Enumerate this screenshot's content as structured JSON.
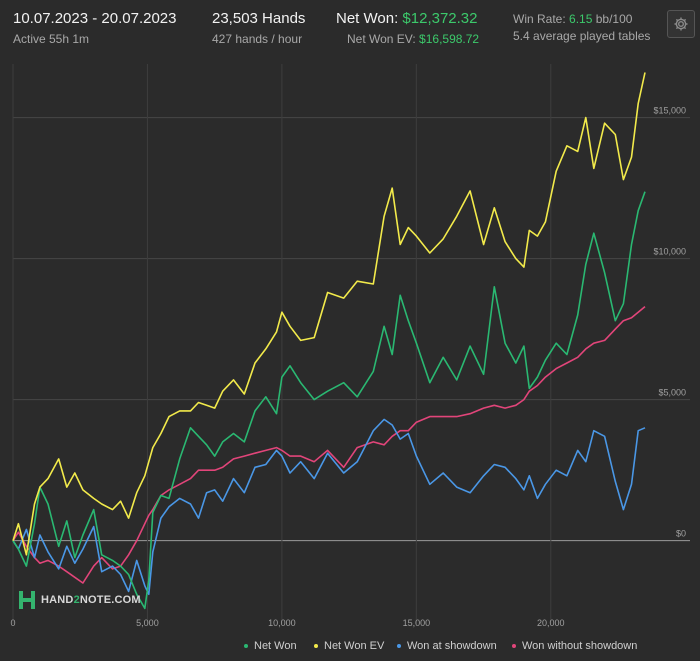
{
  "header": {
    "date_range": "10.07.2023 - 20.07.2023",
    "active": "Active 55h 1m",
    "hands": "23,503 Hands",
    "hands_per_hour": "427 hands / hour",
    "net_won_label": "Net Won:",
    "net_won_value": "$12,372.32",
    "net_won_ev_label": "Net Won  EV:",
    "net_won_ev_value": "$16,598.72",
    "win_rate_label": "Win Rate:",
    "win_rate_value": "6.15",
    "win_rate_unit": "bb/100",
    "avg_tables": "5.4 average played tables"
  },
  "logo": {
    "text_pre": "HAND",
    "text_mid": "2",
    "text_post": "NOTE.COM"
  },
  "colors": {
    "background": "#2b2b2b",
    "net_won": "#2ab872",
    "net_won_ev": "#f2ea4b",
    "won_at_showdown": "#4a97e6",
    "won_without_showdown": "#e2457a",
    "accent_green": "#3cc96b"
  },
  "chart_data": {
    "type": "line",
    "xlabel": "",
    "ylabel": "",
    "xlim": [
      0,
      23503
    ],
    "ylim": [
      -2600,
      16900
    ],
    "x_ticks": [
      0,
      5000,
      10000,
      15000,
      20000
    ],
    "x_tick_labels": [
      "0",
      "5,000",
      "10,000",
      "15,000",
      "20,000"
    ],
    "y_ticks": [
      0,
      5000,
      10000,
      15000
    ],
    "y_tick_labels": [
      "$0",
      "$5,000",
      "$10,000",
      "$15,000"
    ],
    "grid": "horizontal",
    "legend": "bottom-right",
    "series": [
      {
        "name": "Net Won",
        "x": [
          0,
          200,
          500,
          800,
          1000,
          1300,
          1700,
          2000,
          2300,
          2600,
          3000,
          3300,
          3700,
          4000,
          4300,
          4600,
          4900,
          5050,
          5200,
          5500,
          5800,
          6200,
          6600,
          6900,
          7200,
          7500,
          7800,
          8200,
          8600,
          9000,
          9400,
          9800,
          10000,
          10300,
          10700,
          11200,
          11700,
          12300,
          12800,
          13400,
          13800,
          14100,
          14400,
          14700,
          15000,
          15500,
          16000,
          16500,
          17000,
          17500,
          17900,
          18300,
          18700,
          19000,
          19200,
          19500,
          19800,
          20200,
          20600,
          21000,
          21300,
          21600,
          22000,
          22400,
          22700,
          23000,
          23250,
          23503
        ],
        "values": [
          0,
          -300,
          -900,
          600,
          1900,
          1300,
          -200,
          700,
          -600,
          200,
          1100,
          -500,
          -700,
          -900,
          -1200,
          -1900,
          -2400,
          -1400,
          1000,
          1600,
          1500,
          2900,
          4000,
          3700,
          3400,
          3000,
          3500,
          3800,
          3500,
          4600,
          5100,
          4500,
          5800,
          6200,
          5600,
          5000,
          5300,
          5600,
          5100,
          6000,
          7600,
          6600,
          8700,
          7800,
          7000,
          5600,
          6500,
          5700,
          6900,
          5900,
          9000,
          7000,
          6300,
          6900,
          5400,
          5800,
          6400,
          7000,
          6600,
          8000,
          9800,
          10900,
          9500,
          7800,
          8400,
          10500,
          11700,
          12372
        ]
      },
      {
        "name": "Net Won  EV",
        "x": [
          0,
          200,
          500,
          800,
          1000,
          1300,
          1700,
          2000,
          2300,
          2600,
          3000,
          3300,
          3700,
          4000,
          4300,
          4600,
          4900,
          5050,
          5200,
          5500,
          5800,
          6200,
          6600,
          6900,
          7200,
          7500,
          7800,
          8200,
          8600,
          9000,
          9400,
          9800,
          10000,
          10300,
          10700,
          11200,
          11700,
          12300,
          12800,
          13400,
          13800,
          14100,
          14400,
          14700,
          15000,
          15500,
          16000,
          16500,
          17000,
          17500,
          17900,
          18300,
          18700,
          19000,
          19200,
          19500,
          19800,
          20200,
          20600,
          21000,
          21300,
          21600,
          22000,
          22400,
          22700,
          23000,
          23250,
          23503
        ],
        "values": [
          0,
          600,
          -500,
          1300,
          1900,
          2200,
          2900,
          1900,
          2400,
          1800,
          1500,
          1300,
          1100,
          1400,
          800,
          1700,
          2300,
          2800,
          3300,
          3800,
          4400,
          4600,
          4600,
          4900,
          4800,
          4700,
          5300,
          5700,
          5200,
          6300,
          6800,
          7400,
          8100,
          7600,
          7100,
          7200,
          8800,
          8600,
          9200,
          9100,
          11500,
          12500,
          10500,
          11100,
          10800,
          10200,
          10700,
          11500,
          12400,
          10500,
          11800,
          10600,
          10000,
          9700,
          11000,
          10800,
          11300,
          13100,
          14000,
          13800,
          15000,
          13200,
          14800,
          14400,
          12800,
          13600,
          15500,
          16600
        ]
      },
      {
        "name": "Won at showdown",
        "x": [
          0,
          200,
          500,
          800,
          1000,
          1300,
          1700,
          2000,
          2300,
          2600,
          3000,
          3300,
          3700,
          4000,
          4300,
          4600,
          4900,
          5050,
          5200,
          5500,
          5800,
          6200,
          6600,
          6900,
          7200,
          7500,
          7800,
          8200,
          8600,
          9000,
          9400,
          9800,
          10000,
          10300,
          10700,
          11200,
          11700,
          12300,
          12800,
          13400,
          13800,
          14100,
          14400,
          14700,
          15000,
          15500,
          16000,
          16500,
          17000,
          17500,
          17900,
          18300,
          18700,
          19000,
          19200,
          19500,
          19800,
          20200,
          20600,
          21000,
          21300,
          21600,
          22000,
          22400,
          22700,
          23000,
          23250,
          23503
        ],
        "values": [
          0,
          -300,
          400,
          -600,
          200,
          -400,
          -1000,
          -200,
          -800,
          -300,
          500,
          -1100,
          -900,
          -1200,
          -1800,
          -700,
          -1600,
          -1900,
          -400,
          800,
          1200,
          1500,
          1300,
          800,
          1700,
          1800,
          1400,
          2200,
          1700,
          2600,
          2700,
          3200,
          3000,
          2400,
          2800,
          2200,
          3100,
          2400,
          2800,
          3900,
          4300,
          4100,
          3600,
          3800,
          3000,
          2000,
          2400,
          1900,
          1700,
          2300,
          2700,
          2600,
          2200,
          1800,
          2300,
          1500,
          2000,
          2500,
          2300,
          3200,
          2800,
          3900,
          3700,
          2100,
          1100,
          2000,
          3900,
          4000
        ]
      },
      {
        "name": "Won without showdown",
        "x": [
          0,
          200,
          500,
          800,
          1000,
          1300,
          1700,
          2000,
          2300,
          2600,
          3000,
          3300,
          3700,
          4000,
          4300,
          4600,
          4900,
          5050,
          5200,
          5500,
          5800,
          6200,
          6600,
          6900,
          7200,
          7500,
          7800,
          8200,
          8600,
          9000,
          9400,
          9800,
          10000,
          10300,
          10700,
          11200,
          11700,
          12300,
          12800,
          13400,
          13800,
          14100,
          14400,
          14700,
          15000,
          15500,
          16000,
          16500,
          17000,
          17500,
          17900,
          18300,
          18700,
          19000,
          19200,
          19500,
          19800,
          20200,
          20600,
          21000,
          21300,
          21600,
          22000,
          22400,
          22700,
          23000,
          23250,
          23503
        ],
        "values": [
          0,
          300,
          -200,
          -600,
          -800,
          -700,
          -900,
          -1100,
          -1300,
          -1500,
          -900,
          -600,
          -1000,
          -900,
          -500,
          0,
          600,
          900,
          1100,
          1600,
          1800,
          2000,
          2200,
          2500,
          2500,
          2500,
          2600,
          2900,
          3000,
          3100,
          3200,
          3300,
          3200,
          3000,
          3000,
          2800,
          3200,
          2600,
          3300,
          3500,
          3400,
          3700,
          3900,
          3900,
          4200,
          4400,
          4400,
          4400,
          4500,
          4700,
          4800,
          4700,
          4800,
          5000,
          5300,
          5500,
          5800,
          6100,
          6300,
          6500,
          6800,
          7000,
          7100,
          7500,
          7800,
          7900,
          8100,
          8300
        ]
      }
    ]
  }
}
